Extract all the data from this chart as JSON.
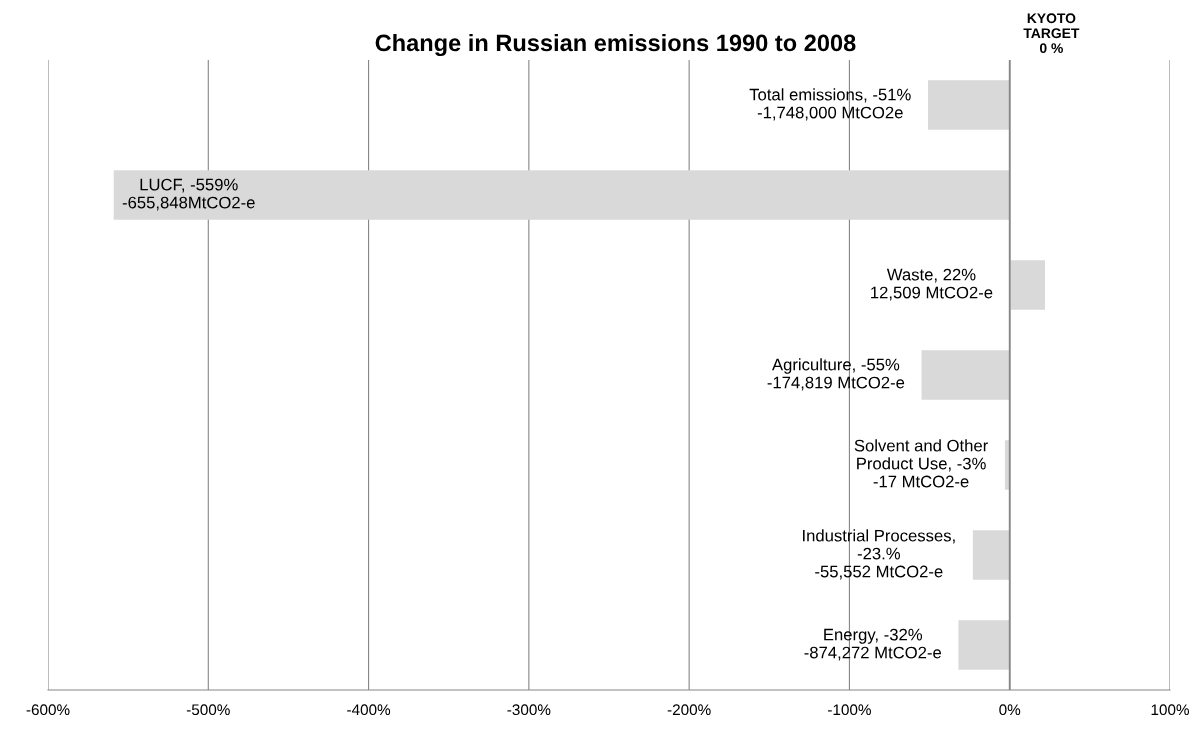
{
  "chart_data": {
    "type": "bar",
    "orientation": "horizontal",
    "title": "Change in Russian emissions 1990 to 2008",
    "categories": [
      null,
      null,
      null,
      null,
      null,
      null,
      null
    ],
    "values": [
      -51,
      -559,
      22,
      -55,
      -3,
      -23,
      -32
    ],
    "value_labels": [
      "Total emissions, -51%\n-1,748,000 MtCO2e",
      "LUCF, -559%\n-655,848MtCO2-e",
      "Waste, 22%\n12,509 MtCO2-e",
      "Agriculture, -55%\n-174,819 MtCO2-e",
      "Solvent and Other\nProduct Use, -3%\n-17 MtCO2-e",
      "Industrial Processes,\n-23.%\n-55,552 MtCO2-e",
      "Energy, -32%\n-874,272 MtCO2-e"
    ],
    "color": "#d9d9d9",
    "xlim": [
      -600,
      100
    ],
    "xticks": [
      {
        "value": -600,
        "label": "-600%"
      },
      {
        "value": -500,
        "label": "-500%"
      },
      {
        "value": -400,
        "label": "-400%"
      },
      {
        "value": -300,
        "label": "-300%"
      },
      {
        "value": -200,
        "label": "-200%"
      },
      {
        "value": -100,
        "label": "-100%"
      },
      {
        "value": 0,
        "label": "0%"
      },
      {
        "value": 100,
        "label": "100%"
      }
    ],
    "grid": "x",
    "ref_lines": [
      {
        "axis": "x",
        "value": 0,
        "label": "KYOTO\nTARGET\n0 %",
        "color": "#868686"
      }
    ]
  }
}
